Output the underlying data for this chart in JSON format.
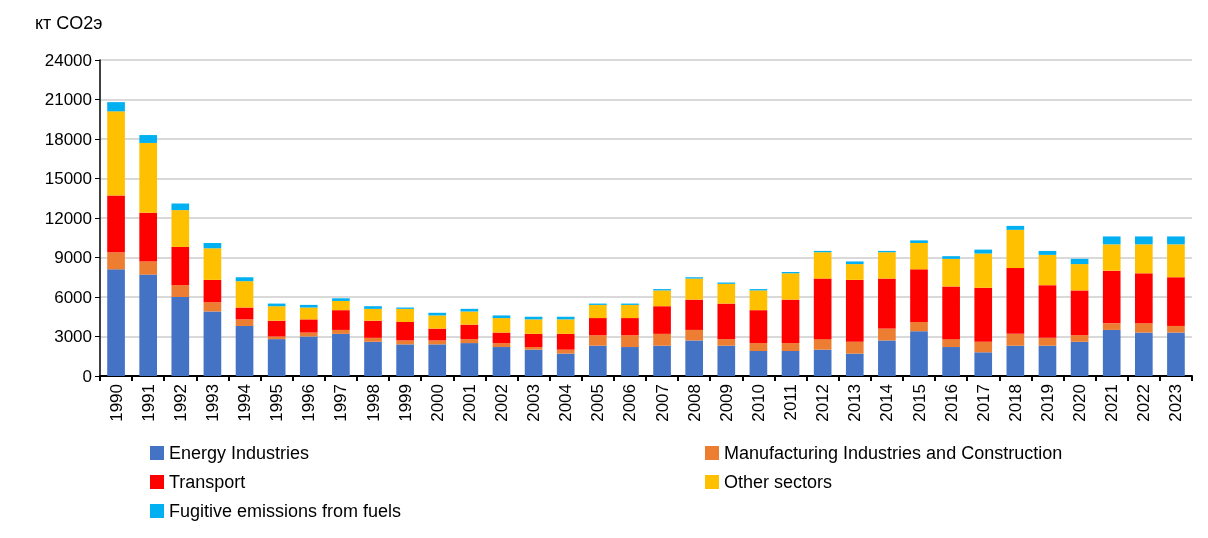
{
  "chart_data": {
    "type": "bar",
    "stacked": true,
    "ylabel": "кт CO2э",
    "categories": [
      "1990",
      "1991",
      "1992",
      "1993",
      "1994",
      "1995",
      "1996",
      "1997",
      "1998",
      "1999",
      "2000",
      "2001",
      "2002",
      "2003",
      "2004",
      "2005",
      "2006",
      "2007",
      "2008",
      "2009",
      "2010",
      "2011",
      "2012",
      "2013",
      "2014",
      "2015",
      "2016",
      "2017",
      "2018",
      "2019",
      "2020",
      "2021",
      "2022",
      "2023"
    ],
    "series": [
      {
        "name": "Energy Industries",
        "color": "#4472c4",
        "values": [
          8100,
          7700,
          6000,
          4900,
          3800,
          2800,
          3000,
          3200,
          2600,
          2400,
          2400,
          2500,
          2200,
          2000,
          1700,
          2300,
          2200,
          2300,
          2700,
          2300,
          1900,
          1900,
          2000,
          1700,
          2700,
          3400,
          2200,
          1800,
          2300,
          2300,
          2600,
          3500,
          3300,
          3300
        ]
      },
      {
        "name": "Manufacturing Industries and Construction",
        "color": "#ed7d31",
        "values": [
          1300,
          1000,
          900,
          700,
          500,
          200,
          300,
          300,
          300,
          300,
          300,
          300,
          300,
          200,
          300,
          800,
          900,
          900,
          800,
          500,
          600,
          600,
          800,
          900,
          900,
          700,
          600,
          800,
          900,
          600,
          500,
          500,
          700,
          500
        ]
      },
      {
        "name": "Transport",
        "color": "#ff0000",
        "values": [
          4300,
          3700,
          2900,
          1700,
          900,
          1200,
          1000,
          1500,
          1300,
          1400,
          900,
          1100,
          800,
          1000,
          1200,
          1300,
          1300,
          2100,
          2300,
          2700,
          2500,
          3300,
          4600,
          4700,
          3800,
          4000,
          4000,
          4100,
          5000,
          4000,
          3400,
          4000,
          3800,
          3700
        ]
      },
      {
        "name": "Other sectors",
        "color": "#ffc000",
        "values": [
          6400,
          5300,
          2800,
          2400,
          2000,
          1100,
          900,
          700,
          900,
          1000,
          1000,
          1000,
          1100,
          1100,
          1100,
          1000,
          1000,
          1200,
          1600,
          1500,
          1500,
          2000,
          2000,
          1200,
          2000,
          2000,
          2100,
          2600,
          2900,
          2300,
          2000,
          2000,
          2200,
          2500
        ]
      },
      {
        "name": "Fugitive emissions from fuels",
        "color": "#00b0f0",
        "values": [
          700,
          600,
          500,
          400,
          300,
          200,
          200,
          200,
          200,
          100,
          200,
          200,
          200,
          200,
          200,
          100,
          100,
          100,
          100,
          100,
          100,
          100,
          100,
          200,
          100,
          200,
          200,
          300,
          300,
          300,
          400,
          600,
          600,
          600
        ]
      }
    ],
    "ylim": [
      0,
      24000
    ],
    "yticks": [
      0,
      3000,
      6000,
      9000,
      12000,
      15000,
      18000,
      21000,
      24000
    ],
    "grid": "y",
    "legend": "bottom"
  }
}
